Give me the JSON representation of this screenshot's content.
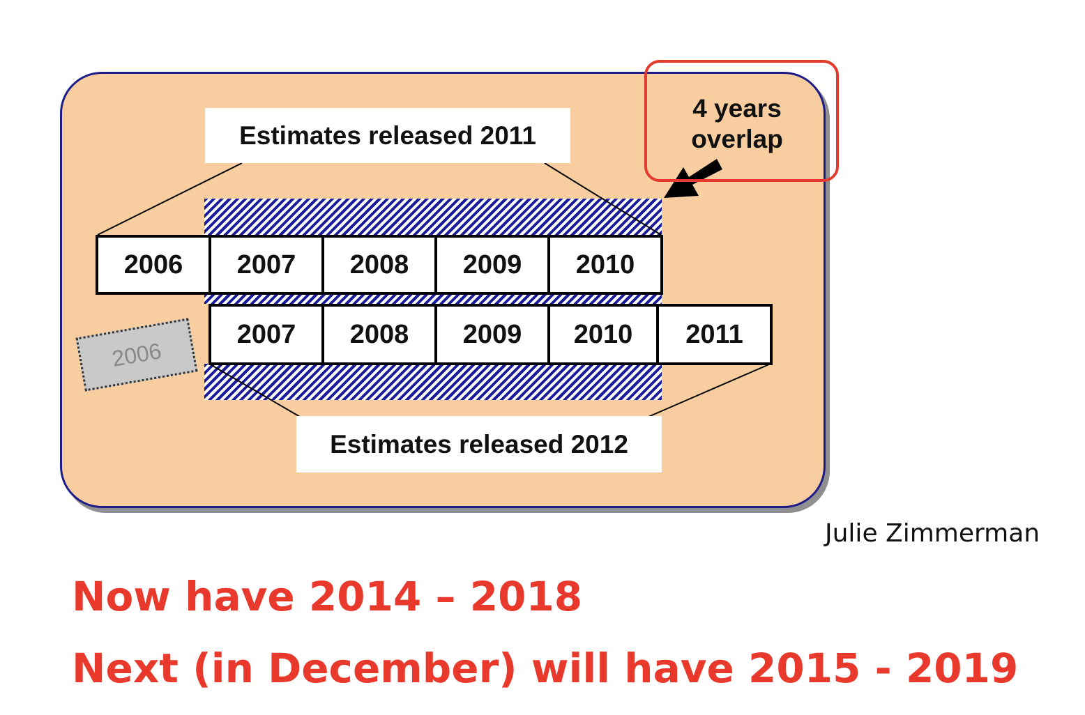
{
  "diagram": {
    "overlap_label": "4 years overlap",
    "overlap_line1": "4 years",
    "overlap_line2": "overlap",
    "release_2011": {
      "label": "Estimates released 2011",
      "years": [
        "2006",
        "2007",
        "2008",
        "2009",
        "2010"
      ]
    },
    "release_2012": {
      "label": "Estimates released 2012",
      "years": [
        "2007",
        "2008",
        "2009",
        "2010",
        "2011"
      ]
    },
    "dropped_year": "2006"
  },
  "author": "Julie Zimmerman",
  "notes": {
    "line1": "Now have 2014 – 2018",
    "line2": "Next (in December) will have 2015 - 2019"
  },
  "colors": {
    "panel": "#f8cea0",
    "panel_border": "#1c1c8a",
    "hatch": "#1a1a9c",
    "highlight": "#e23a2d",
    "note_text": "#e8392c"
  }
}
